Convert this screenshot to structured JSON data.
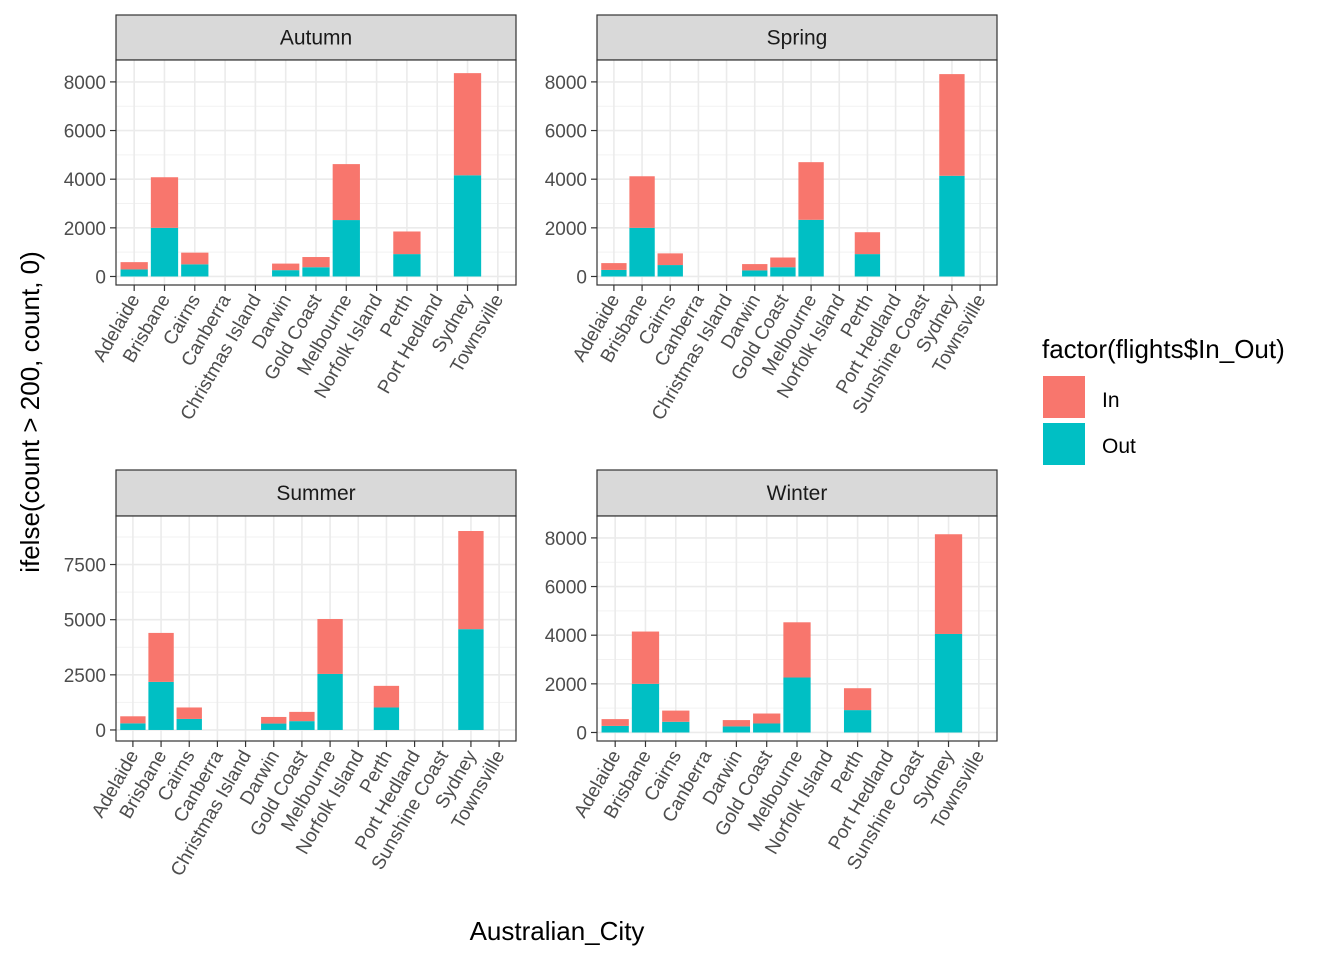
{
  "chart_data": {
    "type": "bar",
    "stacked": true,
    "xlabel": "Australian_City",
    "ylabel": "ifelse(count > 200, count, 0)",
    "legend": {
      "title": "factor(flights$In_Out)",
      "position": "right",
      "entries": [
        {
          "name": "In",
          "color": "#F8766D"
        },
        {
          "name": "Out",
          "color": "#00BFC4"
        }
      ]
    },
    "grid": true,
    "panels": [
      {
        "title": "Autumn",
        "categories": [
          "Adelaide",
          "Brisbane",
          "Cairns",
          "Canberra",
          "Christmas Island",
          "Darwin",
          "Gold Coast",
          "Melbourne",
          "Norfolk Island",
          "Perth",
          "Port Hedland",
          "Sydney",
          "Townsville"
        ],
        "series": [
          {
            "name": "In",
            "values": [
              300,
              2080,
              480,
              0,
              0,
              270,
              420,
              2300,
              0,
              930,
              0,
              4200,
              0
            ]
          },
          {
            "name": "Out",
            "values": [
              290,
              2000,
              500,
              0,
              0,
              260,
              380,
              2320,
              0,
              920,
              0,
              4160,
              0
            ]
          }
        ],
        "ylim": [
          -350,
          8900
        ],
        "yticks": [
          0,
          2000,
          4000,
          6000,
          8000
        ]
      },
      {
        "title": "Spring",
        "categories": [
          "Adelaide",
          "Brisbane",
          "Cairns",
          "Canberra",
          "Christmas Island",
          "Darwin",
          "Gold Coast",
          "Melbourne",
          "Norfolk Island",
          "Perth",
          "Port Hedland",
          "Sunshine Coast",
          "Sydney",
          "Townsville"
        ],
        "series": [
          {
            "name": "In",
            "values": [
              280,
              2120,
              480,
              0,
              0,
              260,
              400,
              2370,
              0,
              900,
              0,
              0,
              4180,
              0
            ]
          },
          {
            "name": "Out",
            "values": [
              270,
              2000,
              470,
              0,
              0,
              250,
              380,
              2330,
              0,
              920,
              0,
              0,
              4140,
              0
            ]
          }
        ],
        "ylim": [
          -350,
          8900
        ],
        "yticks": [
          0,
          2000,
          4000,
          6000,
          8000
        ]
      },
      {
        "title": "Summer",
        "categories": [
          "Adelaide",
          "Brisbane",
          "Cairns",
          "Canberra",
          "Christmas Island",
          "Darwin",
          "Gold Coast",
          "Melbourne",
          "Norfolk Island",
          "Perth",
          "Port Hedland",
          "Sunshine Coast",
          "Sydney",
          "Townsville"
        ],
        "series": [
          {
            "name": "In",
            "values": [
              320,
              2220,
              520,
              0,
              0,
              300,
              420,
              2490,
              0,
              980,
              0,
              0,
              4450,
              0
            ]
          },
          {
            "name": "Out",
            "values": [
              300,
              2180,
              500,
              0,
              0,
              290,
              400,
              2540,
              0,
              1020,
              0,
              0,
              4570,
              0
            ]
          }
        ],
        "ylim": [
          -500,
          9700
        ],
        "yticks": [
          0,
          2500,
          5000,
          7500
        ]
      },
      {
        "title": "Winter",
        "categories": [
          "Adelaide",
          "Brisbane",
          "Cairns",
          "Canberra",
          "Darwin",
          "Gold Coast",
          "Melbourne",
          "Norfolk Island",
          "Perth",
          "Port Hedland",
          "Sunshine Coast",
          "Sydney",
          "Townsville"
        ],
        "series": [
          {
            "name": "In",
            "values": [
              280,
              2150,
              460,
              0,
              260,
              410,
              2270,
              0,
              900,
              0,
              0,
              4100,
              0
            ]
          },
          {
            "name": "Out",
            "values": [
              270,
              2000,
              440,
              0,
              250,
              370,
              2260,
              0,
              920,
              0,
              0,
              4050,
              0
            ]
          }
        ],
        "ylim": [
          -350,
          8900
        ],
        "yticks": [
          0,
          2000,
          4000,
          6000,
          8000
        ]
      }
    ]
  }
}
